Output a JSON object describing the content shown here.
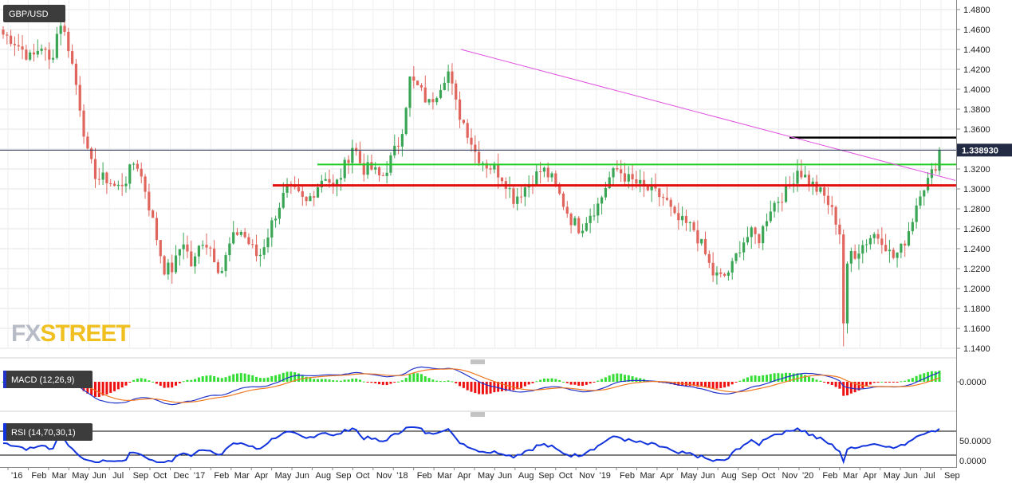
{
  "symbol_label": "GBP/USD",
  "last_price_label": "1.338930",
  "macd_label": "MACD (12,26,9)",
  "rsi_label": "RSI (14,70,30,1)",
  "logo": {
    "part1": "FX",
    "part2": "STREET"
  },
  "colors": {
    "up": "#3aa655",
    "down": "#e0655d",
    "trend": "#e050e0",
    "resistance": "#000000",
    "green_level": "#22cc22",
    "red_level": "#e01010",
    "macd_line": "#2233cc",
    "signal_line": "#f07820",
    "rsi_line": "#1133dd"
  },
  "chart_data": [
    {
      "type": "candlestick",
      "title": "GBP/USD",
      "y_ticks": [
        1.14,
        1.16,
        1.18,
        1.2,
        1.22,
        1.24,
        1.26,
        1.28,
        1.3,
        1.32,
        1.34,
        1.36,
        1.38,
        1.4,
        1.42,
        1.44,
        1.46,
        1.48
      ],
      "y_tick_labels": [
        "1.1400",
        "1.1600",
        "1.1800",
        "1.2000",
        "1.2200",
        "1.2400",
        "1.2600",
        "1.2800",
        "1.3000",
        "1.3200",
        "1.3400",
        "1.3600",
        "1.3800",
        "1.4000",
        "1.4200",
        "1.4400",
        "1.4600",
        "1.4800"
      ],
      "ylim": [
        1.13,
        1.49
      ],
      "last_price": 1.33893,
      "x_tick_labels": [
        "'16",
        "Feb",
        "Mar",
        "May",
        "Jun",
        "Jul",
        "Sep",
        "Oct",
        "Dec",
        "'17",
        "Feb",
        "Mar",
        "Apr",
        "May",
        "Jun",
        "Aug",
        "Sep",
        "Oct",
        "Nov",
        "'18",
        "Feb",
        "Mar",
        "Apr",
        "May",
        "Jun",
        "Aug",
        "Sep",
        "Oct",
        "Nov",
        "'19",
        "Feb",
        "Mar",
        "Apr",
        "May",
        "Jun",
        "Aug",
        "Sep",
        "Oct",
        "Nov",
        "'20",
        "Feb",
        "Mar",
        "Apr",
        "May",
        "Jun",
        "Jul",
        "Sep"
      ],
      "anchors": [
        1.455,
        1.45,
        1.44,
        1.43,
        1.445,
        1.425,
        1.47,
        1.44,
        1.39,
        1.33,
        1.31,
        1.31,
        1.3,
        1.31,
        1.33,
        1.3,
        1.26,
        1.22,
        1.22,
        1.25,
        1.22,
        1.25,
        1.24,
        1.215,
        1.245,
        1.26,
        1.245,
        1.23,
        1.255,
        1.28,
        1.3,
        1.295,
        1.285,
        1.3,
        1.315,
        1.3,
        1.32,
        1.345,
        1.32,
        1.32,
        1.31,
        1.33,
        1.35,
        1.41,
        1.4,
        1.385,
        1.4,
        1.42,
        1.38,
        1.36,
        1.335,
        1.325,
        1.32,
        1.31,
        1.29,
        1.3,
        1.31,
        1.32,
        1.31,
        1.29,
        1.27,
        1.26,
        1.275,
        1.285,
        1.31,
        1.32,
        1.31,
        1.305,
        1.3,
        1.295,
        1.29,
        1.27,
        1.265,
        1.26,
        1.24,
        1.215,
        1.21,
        1.22,
        1.245,
        1.255,
        1.25,
        1.28,
        1.29,
        1.3,
        1.32,
        1.31,
        1.3,
        1.29,
        1.27,
        1.24,
        1.235,
        1.245,
        1.255,
        1.25,
        1.23,
        1.24,
        1.265,
        1.3,
        1.31,
        1.335
      ],
      "trendline": [
        [
          1.44,
          0.0
        ],
        [
          1.3,
          1.0
        ]
      ],
      "horizontal_levels": [
        {
          "name": "resistance",
          "value": 1.3515
        },
        {
          "name": "support-green",
          "value": 1.3245
        },
        {
          "name": "support-red",
          "value": 1.3035
        }
      ]
    },
    {
      "type": "bar+line",
      "title": "MACD (12,26,9)",
      "y_tick_labels": [
        "0.0000"
      ]
    },
    {
      "type": "line",
      "title": "RSI (14,70,30,1)",
      "y_tick_labels": [
        "50.0000",
        "0.0000"
      ],
      "levels": [
        70,
        30
      ]
    }
  ]
}
